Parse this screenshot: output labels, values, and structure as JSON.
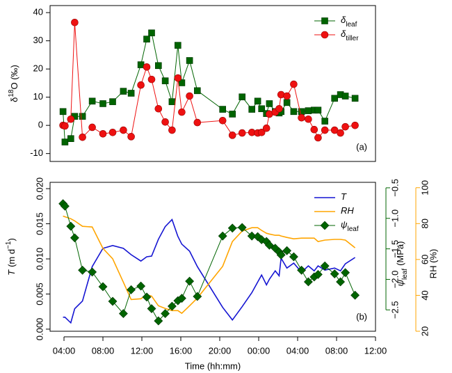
{
  "chart_data": [
    {
      "type": "line",
      "ylabel": "δ",
      "ylabel_sup": "18",
      "ylabel_rest": "O (‰)",
      "annotation": "(a)",
      "x": [
        3.9,
        4.1,
        4.7,
        5.1,
        5.9,
        6.9,
        8.0,
        9.0,
        10.1,
        10.9,
        11.9,
        12.5,
        13.0,
        13.7,
        14.4,
        15.1,
        15.7,
        16.1,
        16.9,
        17.7,
        20.3,
        21.3,
        22.3,
        23.3,
        23.9,
        24.3,
        24.8,
        25.1,
        25.7,
        26.1,
        26.3,
        26.9,
        27.6,
        28.4,
        29.1,
        29.7,
        30.1,
        30.8,
        31.8,
        32.4,
        32.9,
        33.9
      ],
      "xlim": [
        2.57,
        36
      ],
      "ylim": [
        -12.8,
        42.5
      ],
      "yticks": [
        -10,
        0,
        10,
        20,
        30,
        40
      ],
      "legend": "top-right",
      "series": [
        {
          "name": "δ",
          "name_sub": "leaf",
          "color": "#006400",
          "marker": "square",
          "values": [
            4.9,
            -5.9,
            -4.7,
            3.2,
            3.2,
            8.6,
            7.7,
            8.4,
            12.1,
            11.4,
            21.5,
            30.6,
            32.8,
            21.2,
            15.8,
            8.4,
            28.4,
            15.1,
            23.0,
            12.3,
            5.7,
            4.0,
            10.1,
            5.7,
            8.6,
            5.9,
            4.2,
            7.7,
            4.9,
            4.4,
            4.9,
            8.1,
            4.9,
            4.9,
            5.2,
            5.4,
            5.4,
            1.5,
            9.6,
            10.9,
            10.4,
            9.6
          ]
        },
        {
          "name": "δ",
          "name_sub": "tiller",
          "color": "#ee1111",
          "marker": "circle",
          "values": [
            0,
            -0.2,
            2.2,
            36.5,
            -4.2,
            -0.7,
            -3.0,
            -2.5,
            -1.7,
            -4.0,
            14.3,
            20.7,
            16.3,
            5.9,
            1.2,
            -1.7,
            16.8,
            4.7,
            10.4,
            1.0,
            1.7,
            -3.5,
            -2.7,
            -2.5,
            -2.7,
            -2.5,
            -1.0,
            4.0,
            4.7,
            5.9,
            10.9,
            10.4,
            14.6,
            2.7,
            2.2,
            -1.5,
            -4.4,
            -1.7,
            -1.7,
            -2.7,
            -0.5,
            0
          ]
        }
      ]
    },
    {
      "type": "line",
      "ylabel": "T",
      "ylabel_rest": "(m d",
      "ylabel_sup": "−1",
      "ylabel_end": ")",
      "y2label": "ψ",
      "y2label_sub": "leaf",
      "y2label_rest": "(MPa)",
      "y3label": "RH (%)",
      "xlabel": "Time (hh:mm)",
      "annotation": "(b)",
      "x": [
        3.9,
        4.1,
        4.7,
        5.1,
        5.9,
        6.9,
        8.0,
        9.0,
        10.1,
        10.9,
        11.9,
        12.5,
        13.0,
        13.7,
        14.4,
        15.1,
        15.7,
        16.1,
        16.9,
        17.7,
        20.3,
        21.3,
        22.3,
        23.3,
        23.9,
        24.3,
        24.8,
        25.1,
        25.7,
        26.1,
        26.3,
        26.9,
        27.6,
        28.4,
        29.1,
        29.7,
        30.1,
        30.8,
        31.8,
        32.4,
        32.9,
        33.9
      ],
      "xlim": [
        2.57,
        36
      ],
      "xticks": [
        {
          "value": 4,
          "label": "04:00"
        },
        {
          "value": 8,
          "label": "08:00"
        },
        {
          "value": 12,
          "label": "12:00"
        },
        {
          "value": 16,
          "label": "16:00"
        },
        {
          "value": 20,
          "label": "20:00"
        },
        {
          "value": 24,
          "label": "00:00"
        },
        {
          "value": 28,
          "label": "04:00"
        },
        {
          "value": 32,
          "label": "08:00"
        },
        {
          "value": 36,
          "label": "12:00"
        }
      ],
      "ylim": [
        -0.0003,
        0.0209
      ],
      "yticks": [
        {
          "value": 0,
          "label": "0.000"
        },
        {
          "value": 0.005,
          "label": "0.005"
        },
        {
          "value": 0.01,
          "label": "0.010"
        },
        {
          "value": 0.015,
          "label": "0.015"
        },
        {
          "value": 0.02,
          "label": "0.020"
        }
      ],
      "y2lim": [
        -2.85,
        -0.41
      ],
      "y2ticks": [
        {
          "value": -0.5,
          "label": "−0.5"
        },
        {
          "value": -1.0,
          "label": "−1.0"
        },
        {
          "value": -1.5,
          "label": "−1.5"
        },
        {
          "value": -2.0,
          "label": "−2.0"
        },
        {
          "value": -2.5,
          "label": "−2.5"
        }
      ],
      "y3lim": [
        20,
        103
      ],
      "y3ticks": [
        20,
        40,
        60,
        80,
        100
      ],
      "legend": "top-right",
      "series": [
        {
          "name": "T",
          "color": "#1414d2",
          "marker": null,
          "values": [
            0.0017,
            0.0017,
            0.0009,
            0.0029,
            0.004,
            0.0089,
            0.0115,
            0.0119,
            0.0115,
            0.0106,
            0.0097,
            0.0103,
            0.0104,
            0.0128,
            0.0146,
            0.0156,
            0.0132,
            0.0121,
            0.0111,
            0.0089,
            0.0031,
            0.0013,
            0.0032,
            0.0052,
            0.0067,
            0.0077,
            0.0063,
            0.0071,
            0.0083,
            0.0076,
            0.0101,
            0.0087,
            0.0094,
            0.0081,
            0.009,
            0.0083,
            0.009,
            0.0084,
            0.0087,
            0.0083,
            0.0093,
            0.0102
          ]
        },
        {
          "name": "RH",
          "color": "#ffa500",
          "marker": null,
          "axis": "y3",
          "values": [
            84.2,
            83.8,
            82.7,
            81.5,
            78.5,
            78.1,
            66.2,
            60.4,
            47.3,
            37.7,
            38.1,
            40.4,
            39.6,
            34.2,
            32.7,
            31.5,
            31.5,
            30.0,
            34.2,
            38.5,
            56.2,
            70.0,
            75.8,
            77.7,
            77.7,
            76.2,
            74.6,
            74.2,
            73.5,
            73.5,
            73.1,
            72.3,
            71.5,
            71.9,
            71.9,
            71.9,
            70.0,
            70.8,
            71.2,
            71.2,
            70.8,
            66.5
          ]
        },
        {
          "name": "ψ",
          "name_sub": "leaf",
          "color": "#006400",
          "marker": "diamond",
          "axis": "y2",
          "values": [
            -0.76,
            -0.8,
            -1.13,
            -1.32,
            -1.85,
            -1.88,
            -2.12,
            -2.36,
            -2.56,
            -2.17,
            -2.11,
            -2.29,
            -2.48,
            -2.68,
            -2.56,
            -2.44,
            -2.35,
            -2.31,
            -2.03,
            -2.28,
            -1.29,
            -1.16,
            -1.15,
            -1.29,
            -1.3,
            -1.35,
            -1.38,
            -1.44,
            -1.49,
            -1.55,
            -1.6,
            -1.53,
            -1.63,
            -1.85,
            -2.04,
            -1.96,
            -1.92,
            -1.78,
            -1.91,
            -2.04,
            -1.89,
            -2.26
          ]
        }
      ]
    }
  ]
}
